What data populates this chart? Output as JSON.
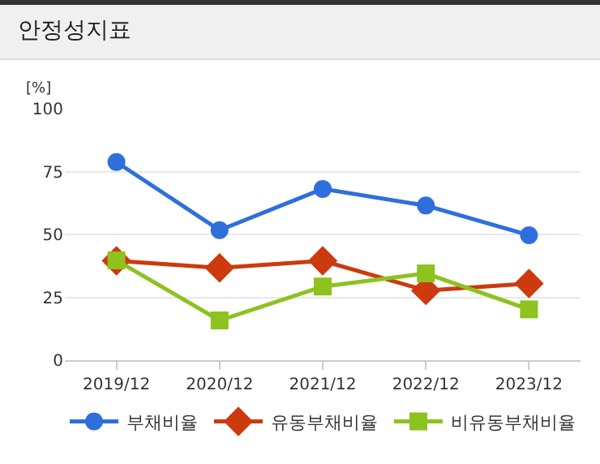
{
  "chart_data": {
    "type": "line",
    "title": "안정성지표",
    "ylabel": "[%]",
    "categories": [
      "2019/12",
      "2020/12",
      "2021/12",
      "2022/12",
      "2023/12"
    ],
    "series": [
      {
        "name": "부채비율",
        "color": "#2f6fdc",
        "marker": "circle",
        "values": [
          78.8,
          51.7,
          68.1,
          61.5,
          49.7
        ]
      },
      {
        "name": "유동부채비율",
        "color": "#cc3a0e",
        "marker": "diamond",
        "values": [
          39.5,
          36.7,
          39.5,
          27.7,
          30.5
        ]
      },
      {
        "name": "비유동부채비율",
        "color": "#8dc21f",
        "marker": "square",
        "values": [
          39.7,
          15.8,
          29.3,
          34.5,
          20.2
        ]
      }
    ],
    "ylim": [
      0,
      100
    ],
    "yticks": [
      0,
      25,
      50,
      75,
      100
    ],
    "grid": "y",
    "legend": "bottom",
    "line_style": "solid"
  }
}
